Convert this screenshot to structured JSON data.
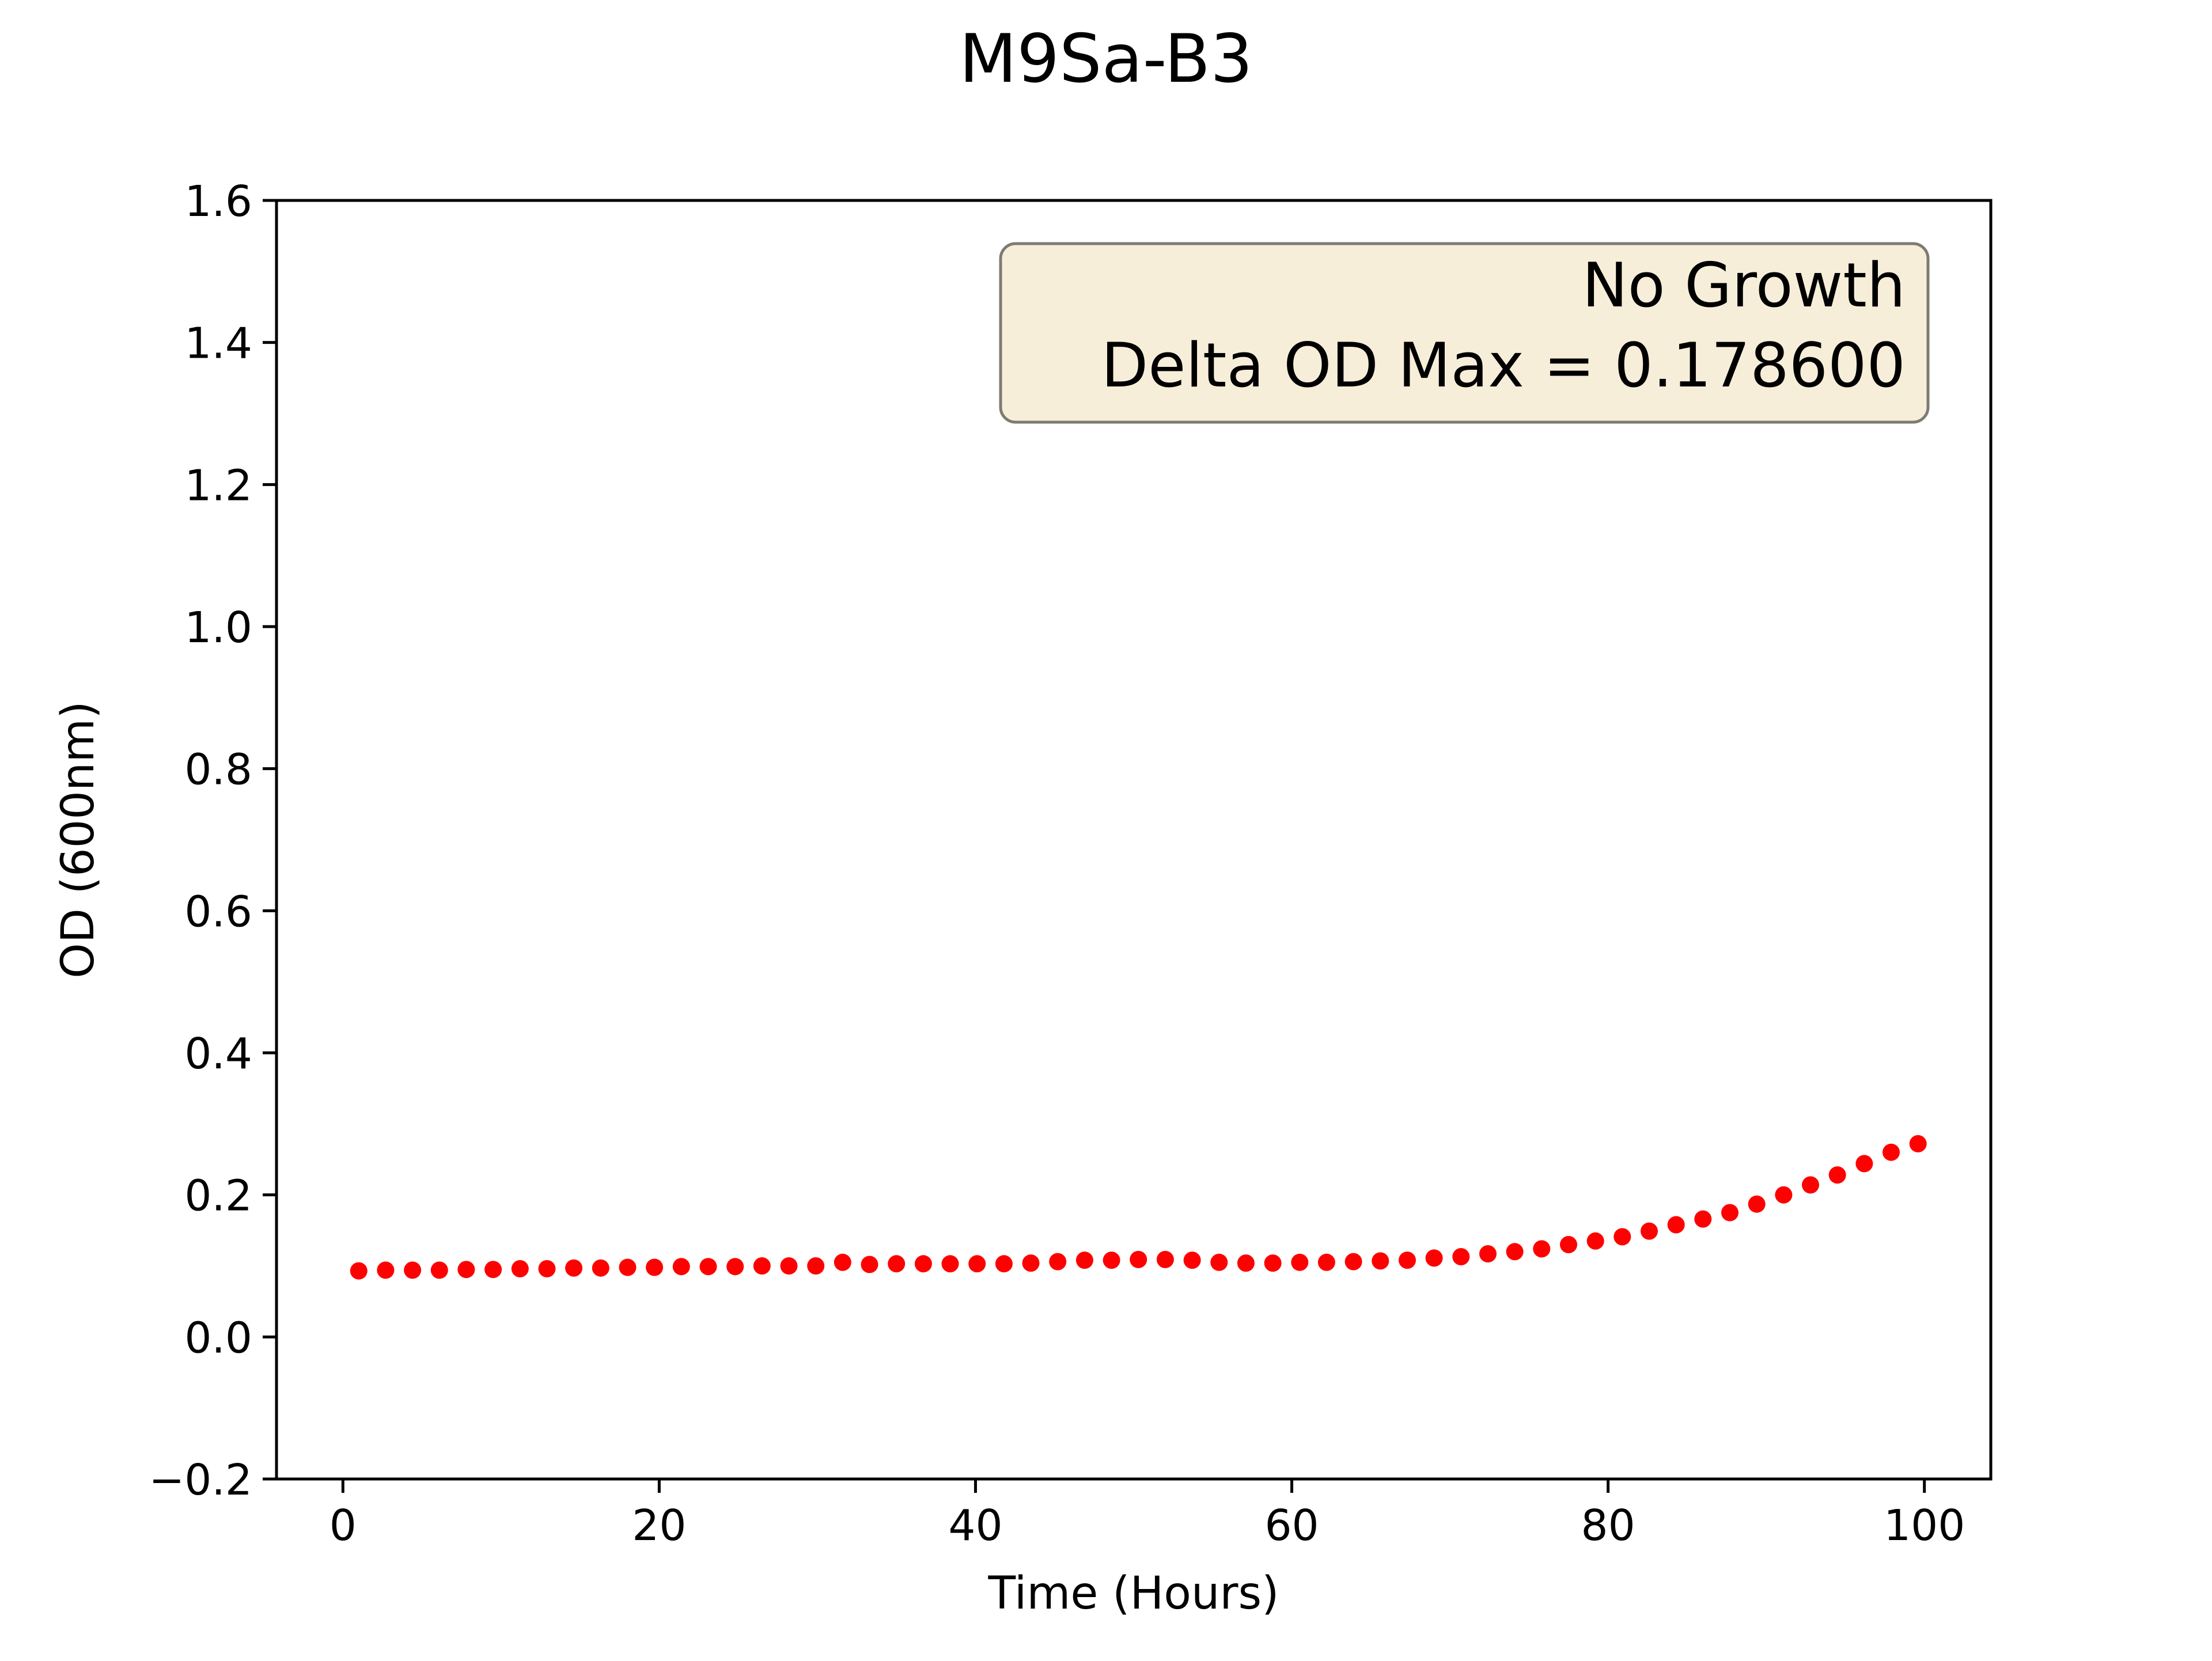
{
  "chart_data": {
    "type": "scatter",
    "title": "M9Sa-B3",
    "xlabel": "Time (Hours)",
    "ylabel": "OD (600nm)",
    "xlim": [
      -4.2,
      104.2
    ],
    "ylim": [
      -0.2,
      1.6
    ],
    "x_ticks": [
      0,
      20,
      40,
      60,
      80,
      100
    ],
    "x_tick_labels": [
      "0",
      "20",
      "40",
      "60",
      "80",
      "100"
    ],
    "y_ticks": [
      -0.2,
      0.0,
      0.2,
      0.4,
      0.6,
      0.8,
      1.0,
      1.2,
      1.4,
      1.6
    ],
    "y_tick_labels": [
      "−0.2",
      "0.0",
      "0.2",
      "0.4",
      "0.6",
      "0.8",
      "1.0",
      "1.2",
      "1.4",
      "1.6"
    ],
    "grid": false,
    "marker_color": "#ff0000",
    "annotation": {
      "lines": [
        "No Growth",
        "Delta OD Max = 0.178600"
      ],
      "placement": "top-right",
      "box_color": "#f7eed9",
      "border_color": "#7f7a73"
    },
    "series": [
      {
        "x": [
          1.0,
          2.7,
          4.4,
          6.1,
          7.8,
          9.5,
          11.2,
          12.9,
          14.6,
          16.3,
          18.0,
          19.7,
          21.4,
          23.1,
          24.8,
          26.5,
          28.2,
          29.9,
          31.6,
          33.3,
          35.0,
          36.7,
          38.4,
          40.1,
          41.8,
          43.5,
          45.2,
          46.9,
          48.6,
          50.3,
          52.0,
          53.7,
          55.4,
          57.1,
          58.8,
          60.5,
          62.2,
          63.9,
          65.6,
          67.3,
          69.0,
          70.7,
          72.4,
          74.1,
          75.8,
          77.5,
          79.2,
          80.9,
          82.6,
          84.3,
          86.0,
          87.7,
          89.4,
          91.1,
          92.8,
          94.5,
          96.2,
          97.9,
          99.6
        ],
        "y": [
          0.093,
          0.094,
          0.094,
          0.094,
          0.095,
          0.095,
          0.096,
          0.096,
          0.097,
          0.097,
          0.098,
          0.098,
          0.099,
          0.099,
          0.099,
          0.1,
          0.1,
          0.1,
          0.105,
          0.102,
          0.103,
          0.103,
          0.103,
          0.103,
          0.103,
          0.104,
          0.106,
          0.108,
          0.108,
          0.109,
          0.109,
          0.108,
          0.105,
          0.104,
          0.104,
          0.105,
          0.105,
          0.106,
          0.107,
          0.108,
          0.111,
          0.113,
          0.117,
          0.12,
          0.124,
          0.13,
          0.135,
          0.141,
          0.149,
          0.158,
          0.166,
          0.175,
          0.187,
          0.2,
          0.214,
          0.228,
          0.244,
          0.26,
          0.272
        ]
      }
    ]
  }
}
